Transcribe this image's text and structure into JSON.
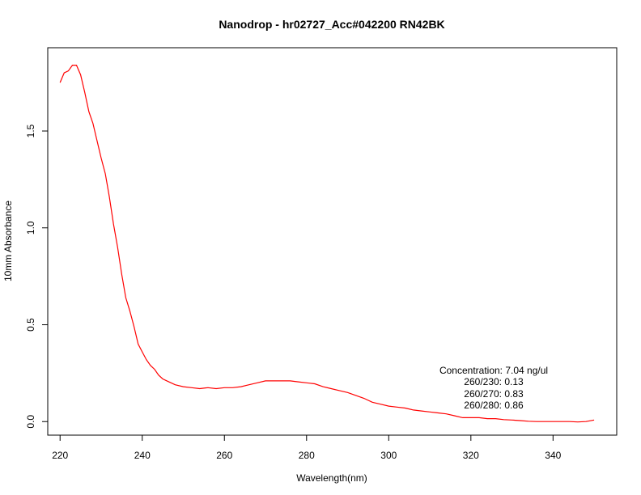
{
  "chart_data": {
    "type": "line",
    "title": "Nanodrop - hr02727_Acc#042200 RN42BK",
    "xlabel": "Wavelength(nm)",
    "ylabel": "10mm Absorbance",
    "xlim": [
      217,
      355.5
    ],
    "ylim": [
      -0.07,
      1.93
    ],
    "x_ticks": [
      220,
      240,
      260,
      280,
      300,
      320,
      340
    ],
    "x_tick_labels": [
      "220",
      "240",
      "260",
      "280",
      "300",
      "320",
      "340"
    ],
    "y_ticks": [
      0.0,
      0.5,
      1.0,
      1.5
    ],
    "y_tick_labels": [
      "0.0",
      "0.5",
      "1.0",
      "1.5"
    ],
    "grid": false,
    "line_color": "#ff0000",
    "series": [
      {
        "x": [
          220,
          221,
          222,
          223,
          224,
          225,
          226,
          227,
          228,
          229,
          230,
          231,
          232,
          233,
          234,
          235,
          236,
          237,
          238,
          239,
          240,
          241,
          242,
          243,
          244,
          245,
          246,
          248,
          250,
          252,
          254,
          256,
          258,
          260,
          262,
          264,
          266,
          268,
          270,
          272,
          274,
          276,
          278,
          280,
          282,
          284,
          286,
          288,
          290,
          292,
          294,
          296,
          298,
          300,
          302,
          304,
          306,
          308,
          310,
          312,
          314,
          316,
          318,
          320,
          322,
          324,
          326,
          328,
          330,
          332,
          334,
          336,
          338,
          340,
          342,
          344,
          346,
          348,
          350
        ],
        "y": [
          1.75,
          1.8,
          1.81,
          1.84,
          1.84,
          1.79,
          1.7,
          1.6,
          1.54,
          1.45,
          1.36,
          1.28,
          1.16,
          1.02,
          0.9,
          0.76,
          0.64,
          0.57,
          0.49,
          0.4,
          0.36,
          0.32,
          0.29,
          0.27,
          0.24,
          0.22,
          0.21,
          0.19,
          0.18,
          0.175,
          0.17,
          0.175,
          0.17,
          0.175,
          0.175,
          0.18,
          0.19,
          0.2,
          0.21,
          0.21,
          0.21,
          0.21,
          0.205,
          0.2,
          0.195,
          0.18,
          0.17,
          0.16,
          0.15,
          0.135,
          0.12,
          0.1,
          0.09,
          0.08,
          0.075,
          0.07,
          0.06,
          0.055,
          0.05,
          0.045,
          0.04,
          0.03,
          0.02,
          0.02,
          0.02,
          0.015,
          0.015,
          0.01,
          0.008,
          0.005,
          0.002,
          0.0,
          0.0,
          0.0,
          0.0,
          0.0,
          -0.002,
          0.0,
          0.008
        ]
      }
    ]
  },
  "annotations": [
    "Concentration: 7.04 ng/ul",
    "260/230: 0.13",
    "260/270: 0.83",
    "260/280: 0.86"
  ]
}
